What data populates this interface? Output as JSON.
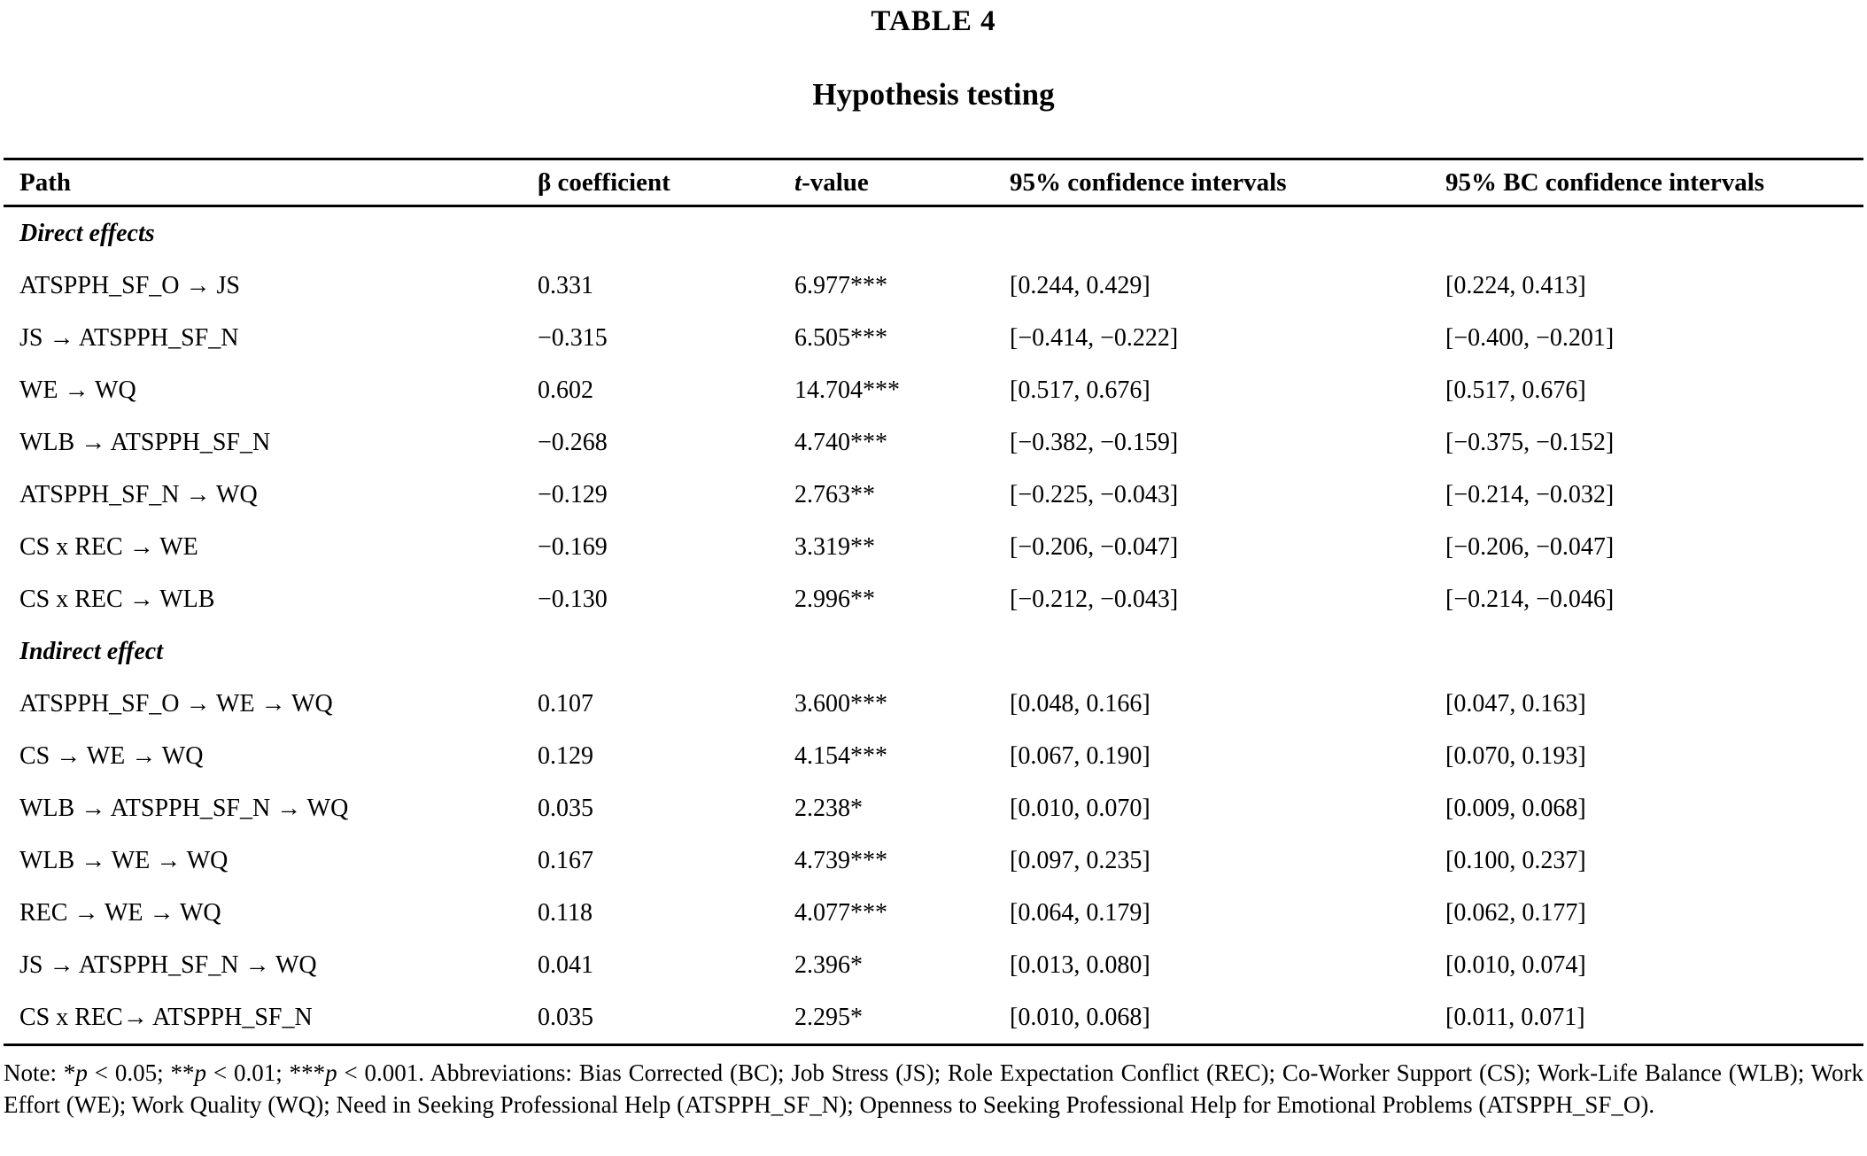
{
  "page": {
    "label": "TABLE 4",
    "title": "Hypothesis testing"
  },
  "columns": {
    "path": "Path",
    "beta": "β coefficient",
    "t_italic": "t",
    "t_rest": "-value",
    "ci": "95% confidence intervals",
    "bc_ci": "95% BC confidence intervals"
  },
  "sections": [
    {
      "header": "Direct effects",
      "rows": [
        {
          "path": "ATSPPH_SF_O → JS",
          "beta": "0.331",
          "t_value": "6.977***",
          "ci": "[0.244, 0.429]",
          "bc_ci": "[0.224, 0.413]"
        },
        {
          "path": "JS → ATSPPH_SF_N",
          "beta": "−0.315",
          "t_value": "6.505***",
          "ci": "[−0.414, −0.222]",
          "bc_ci": "[−0.400, −0.201]"
        },
        {
          "path": "WE → WQ",
          "beta": "0.602",
          "t_value": "14.704***",
          "ci": "[0.517, 0.676]",
          "bc_ci": "[0.517, 0.676]"
        },
        {
          "path": "WLB → ATSPPH_SF_N",
          "beta": "−0.268",
          "t_value": "4.740***",
          "ci": "[−0.382, −0.159]",
          "bc_ci": "[−0.375, −0.152]"
        },
        {
          "path": "ATSPPH_SF_N → WQ",
          "beta": "−0.129",
          "t_value": "2.763**",
          "ci": "[−0.225, −0.043]",
          "bc_ci": "[−0.214, −0.032]"
        },
        {
          "path": "CS x REC → WE",
          "beta": "−0.169",
          "t_value": "3.319**",
          "ci": "[−0.206, −0.047]",
          "bc_ci": "[−0.206, −0.047]"
        },
        {
          "path": "CS x REC → WLB",
          "beta": "−0.130",
          "t_value": "2.996**",
          "ci": "[−0.212, −0.043]",
          "bc_ci": "[−0.214, −0.046]"
        }
      ]
    },
    {
      "header": "Indirect effect",
      "rows": [
        {
          "path": "ATSPPH_SF_O → WE → WQ",
          "beta": "0.107",
          "t_value": "3.600***",
          "ci": "[0.048, 0.166]",
          "bc_ci": "[0.047, 0.163]"
        },
        {
          "path": "CS → WE → WQ",
          "beta": "0.129",
          "t_value": "4.154***",
          "ci": "[0.067, 0.190]",
          "bc_ci": "[0.070, 0.193]"
        },
        {
          "path": "WLB → ATSPPH_SF_N → WQ",
          "beta": "0.035",
          "t_value": "2.238*",
          "ci": "[0.010, 0.070]",
          "bc_ci": "[0.009, 0.068]"
        },
        {
          "path": "WLB → WE → WQ",
          "beta": "0.167",
          "t_value": "4.739***",
          "ci": "[0.097, 0.235]",
          "bc_ci": "[0.100, 0.237]"
        },
        {
          "path": "REC → WE → WQ",
          "beta": "0.118",
          "t_value": "4.077***",
          "ci": "[0.064, 0.179]",
          "bc_ci": "[0.062, 0.177]"
        },
        {
          "path": "JS → ATSPPH_SF_N → WQ",
          "beta": "0.041",
          "t_value": "2.396*",
          "ci": "[0.013, 0.080]",
          "bc_ci": "[0.010, 0.074]"
        },
        {
          "path": "CS x REC→ ATSPPH_SF_N",
          "beta": "0.035",
          "t_value": "2.295*",
          "ci": "[0.010, 0.068]",
          "bc_ci": "[0.011, 0.071]"
        }
      ]
    }
  ],
  "note": {
    "label": "Note: ",
    "significance": [
      {
        "stars": "*",
        "p": "p",
        "rest": " < 0.05; "
      },
      {
        "stars": "**",
        "p": "p",
        "rest": " < 0.01; "
      },
      {
        "stars": "***",
        "p": "p",
        "rest": " < 0.001. "
      }
    ],
    "abbreviations": "Abbreviations: Bias Corrected (BC); Job Stress (JS); Role Expectation Conflict (REC); Co-Worker Support (CS); Work-Life Balance (WLB); Work Effort (WE); Work Quality (WQ); Need in Seeking Professional Help (ATSPPH_SF_N); Openness to Seeking Professional Help for Emotional Problems (ATSPPH_SF_O)."
  }
}
